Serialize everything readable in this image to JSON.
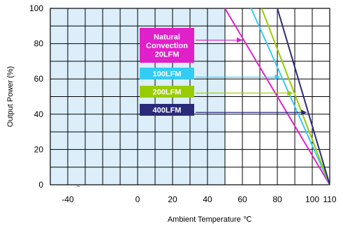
{
  "chart_data": {
    "type": "line",
    "xlabel": "Ambient Temperature  ℃",
    "ylabel": "Output Power  (%)",
    "xlim": [
      -50,
      110
    ],
    "ylim": [
      0,
      100
    ],
    "x_ticks": [
      "-40",
      "0",
      "20",
      "40",
      "60",
      "80",
      "100",
      "110"
    ],
    "x_tick_values": [
      -40,
      0,
      20,
      40,
      60,
      80,
      100,
      110
    ],
    "y_ticks": [
      "0",
      "20",
      "40",
      "60",
      "80",
      "100"
    ],
    "y_tick_values": [
      0,
      20,
      40,
      60,
      80,
      100
    ],
    "axis_break_mark": "~",
    "grid": true,
    "shaded_region": {
      "x_from": -50,
      "x_to": 50,
      "color": "#dbeefa"
    },
    "series": [
      {
        "name": "Natural Convection 20LFM",
        "label_lines": [
          "Natural",
          "Convection",
          "20LFM"
        ],
        "color": "#e020c8",
        "x": [
          50,
          110
        ],
        "y": [
          100,
          0
        ],
        "arrow_y": 82
      },
      {
        "name": "100LFM",
        "label_lines": [
          "100LFM"
        ],
        "color": "#33ccf5",
        "x": [
          65,
          110
        ],
        "y": [
          100,
          0
        ],
        "arrow_y": 61
      },
      {
        "name": "200LFM",
        "label_lines": [
          "200LFM"
        ],
        "color": "#99cc00",
        "x": [
          71,
          110
        ],
        "y": [
          100,
          0
        ],
        "arrow_y": 52
      },
      {
        "name": "400LFM",
        "label_lines": [
          "400LFM"
        ],
        "color": "#2a2a7a",
        "x": [
          80,
          110
        ],
        "y": [
          100,
          0
        ],
        "arrow_y": 41
      }
    ]
  }
}
